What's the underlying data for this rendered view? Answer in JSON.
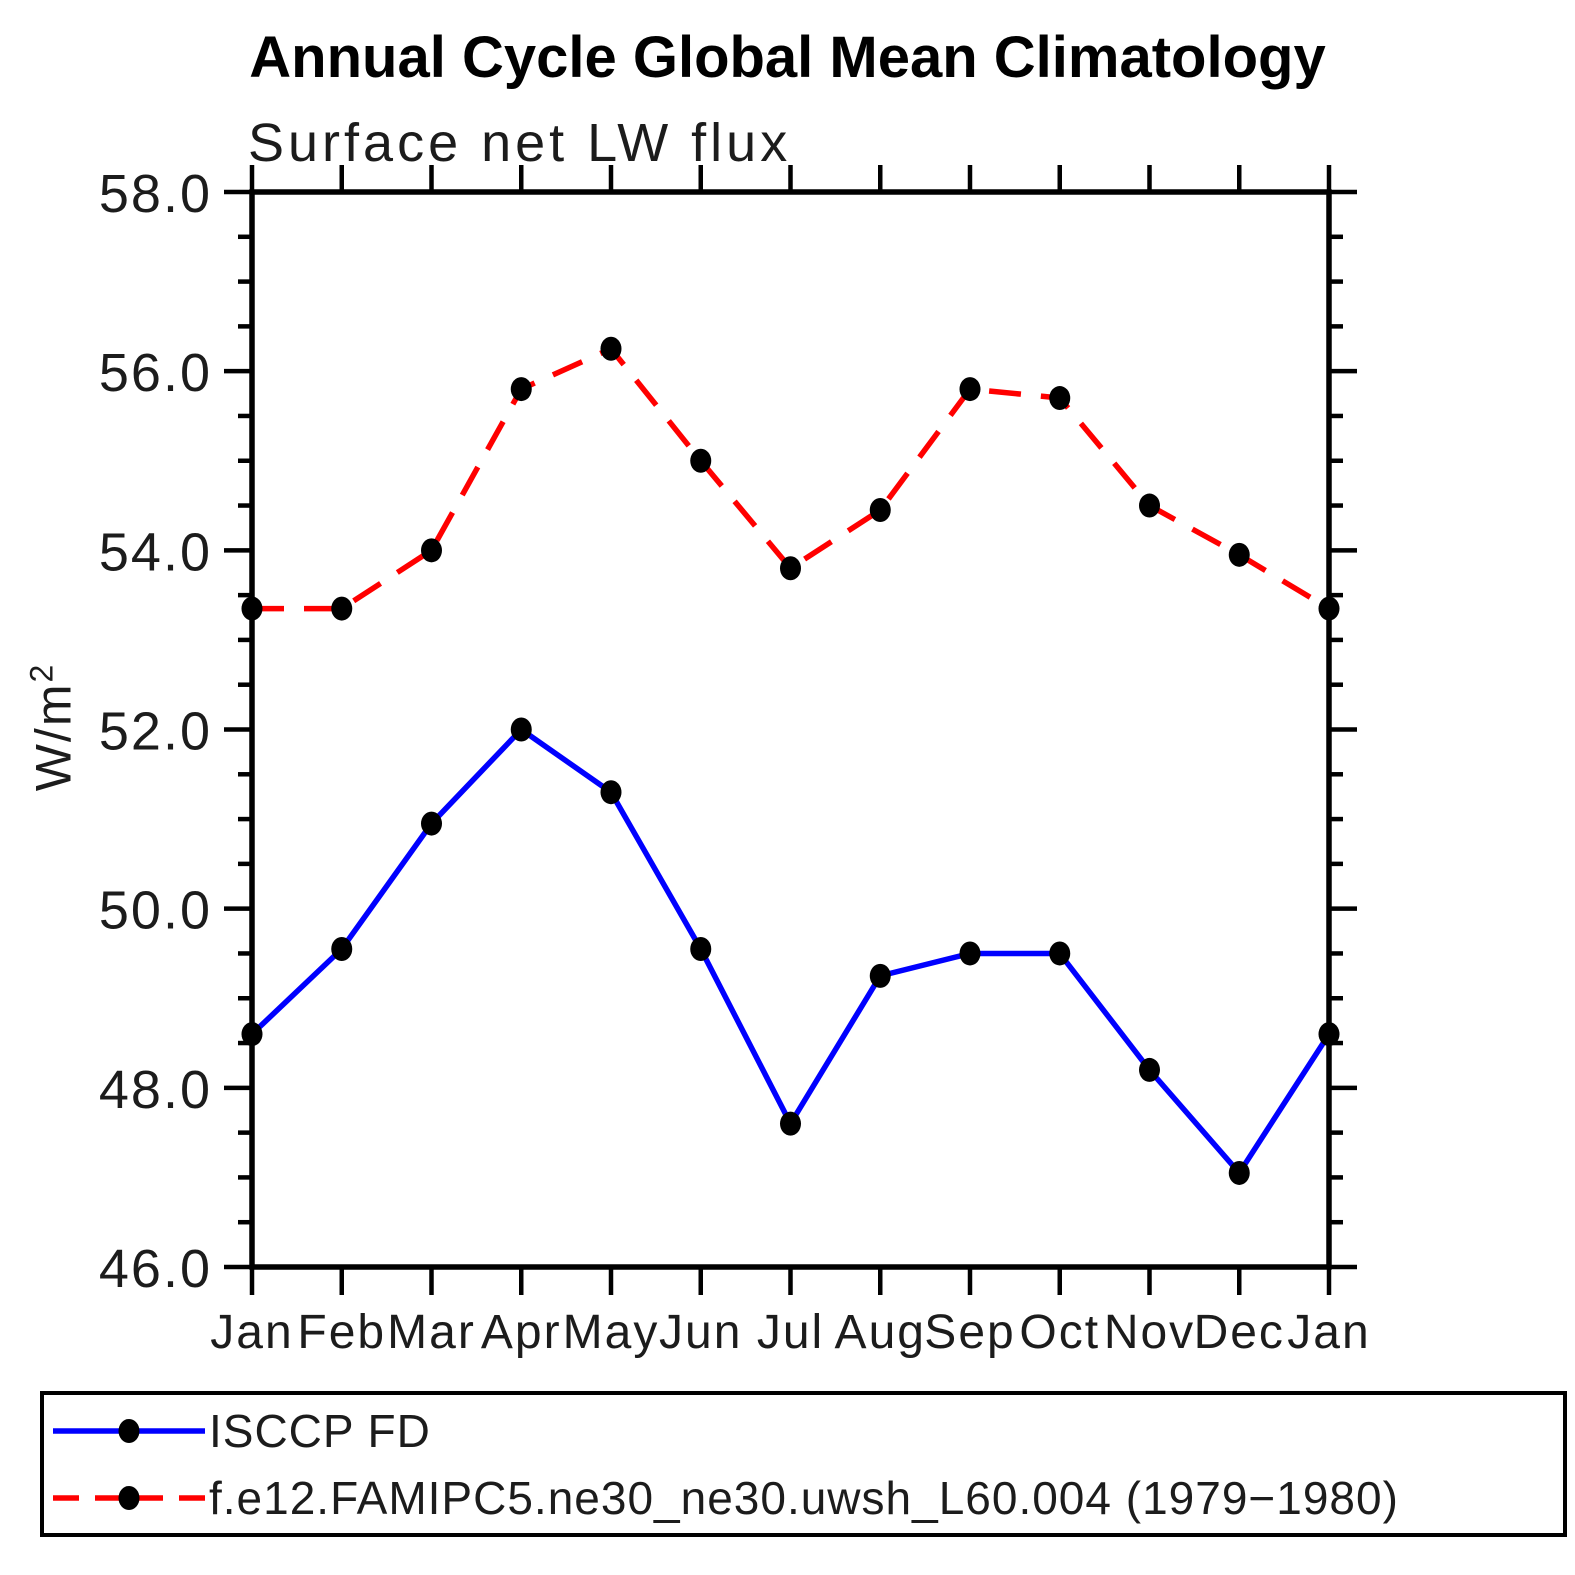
{
  "chart_data": {
    "type": "line",
    "title": "Annual Cycle Global Mean Climatology",
    "subtitle": "Surface net LW flux",
    "ylabel_base": "W/m",
    "ylabel_exp": "2",
    "categories": [
      "Jan",
      "Feb",
      "Mar",
      "Apr",
      "May",
      "Jun",
      "Jul",
      "Aug",
      "Sep",
      "Oct",
      "Nov",
      "Dec",
      "Jan"
    ],
    "ylim": [
      46.0,
      58.0
    ],
    "ytick_step": 2.0,
    "ytick_minor_step": 0.5,
    "ytick_labels": [
      "58.0",
      "56.0",
      "54.0",
      "52.0",
      "50.0",
      "48.0",
      "46.0"
    ],
    "grid": false,
    "legend_position": "below",
    "axis_color": "#000000",
    "series": [
      {
        "name": "ISCCP FD",
        "color": "#0000ff",
        "dash": "solid",
        "marker_color": "#000000",
        "values": [
          48.6,
          49.55,
          50.95,
          52.0,
          51.3,
          49.55,
          47.6,
          49.25,
          49.5,
          49.5,
          48.2,
          47.05,
          48.6
        ]
      },
      {
        "name": "f.e12.FAMIPC5.ne30_ne30.uwsh_L60.004 (1979−1980)",
        "color": "#ff0000",
        "dash": "dashed",
        "marker_color": "#000000",
        "values": [
          53.35,
          53.35,
          54.0,
          55.8,
          56.25,
          55.0,
          53.8,
          54.45,
          55.8,
          55.7,
          54.5,
          53.95,
          53.35
        ]
      }
    ]
  }
}
